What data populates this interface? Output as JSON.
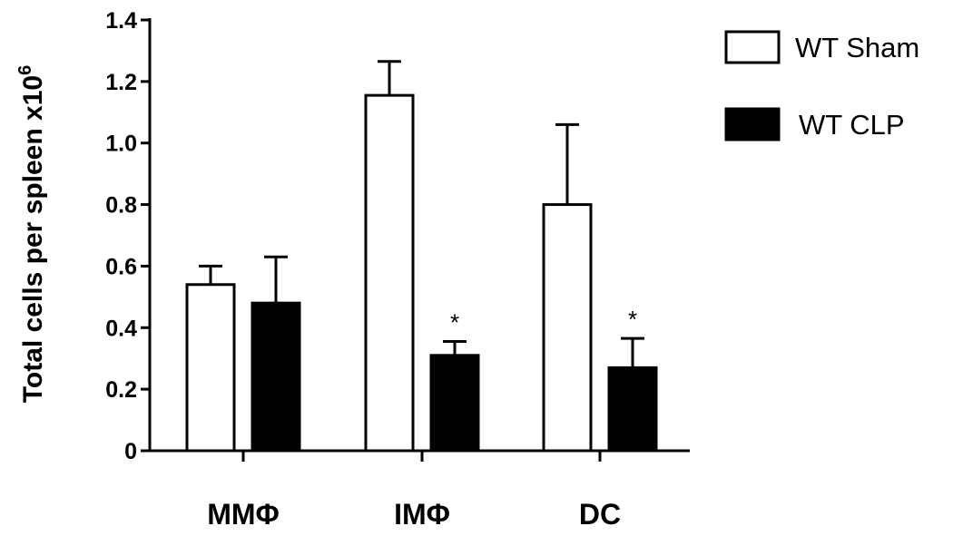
{
  "chart_data": {
    "type": "bar",
    "categories": [
      "MMΦ",
      "IMΦ",
      "DC"
    ],
    "series": [
      {
        "name": "WT Sham",
        "values": [
          0.54,
          1.155,
          0.8
        ],
        "errors": [
          0.06,
          0.11,
          0.26
        ],
        "fill": "#ffffff",
        "stroke": "#000000",
        "annotations": [
          "",
          "",
          ""
        ]
      },
      {
        "name": "WT CLP",
        "values": [
          0.48,
          0.31,
          0.27
        ],
        "errors": [
          0.15,
          0.045,
          0.095
        ],
        "fill": "#000000",
        "stroke": "#000000",
        "annotations": [
          "",
          "*",
          "*"
        ]
      }
    ],
    "ylim": [
      0,
      1.4
    ],
    "yticks": [
      "0",
      "0.2",
      "0.4",
      "0.6",
      "0.8",
      "1.0",
      "1.2",
      "1.4"
    ],
    "ylabel": "Total cells per spleen x10",
    "ylabel_superscript": "6",
    "xlabel": "",
    "grid": false,
    "legend_position": "top-right"
  }
}
